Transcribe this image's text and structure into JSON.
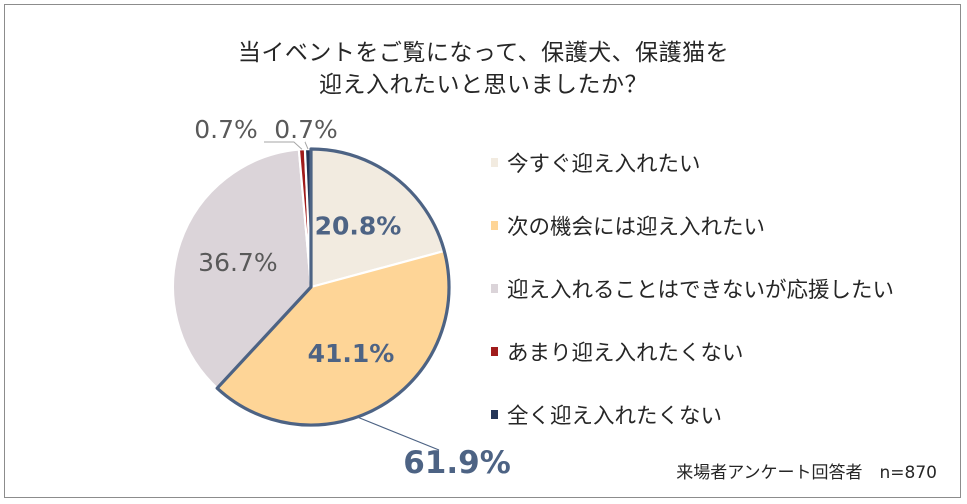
{
  "chart_data": {
    "type": "pie",
    "title": [
      "当イベントをご覧になって、保護犬、保護猫を",
      "迎え入れたいと思いましたか？"
    ],
    "slices": [
      {
        "label": "今すぐ迎え入れたい",
        "value": 20.8,
        "value_label": "20.8%",
        "color": "#f2ebe0",
        "highlight": true
      },
      {
        "label": "次の機会には迎え入れたい",
        "value": 41.1,
        "value_label": "41.1%",
        "color": "#fed597",
        "highlight": true
      },
      {
        "label": "迎え入れることはできないが応援したい",
        "value": 36.7,
        "value_label": "36.7%",
        "color": "#dbd4d9",
        "highlight": false
      },
      {
        "label": "あまり迎え入れたくない",
        "value": 0.7,
        "value_label": "0.7%",
        "color": "#a01b1b",
        "highlight": false
      },
      {
        "label": "全く迎え入れたくない",
        "value": 0.7,
        "value_label": "0.7%",
        "color": "#243557",
        "highlight": false
      }
    ],
    "highlight_total_label": "61.9%",
    "highlight_color": "#4d6384",
    "legend_position": "right"
  },
  "note": "来場者アンケート回答者　n=870"
}
